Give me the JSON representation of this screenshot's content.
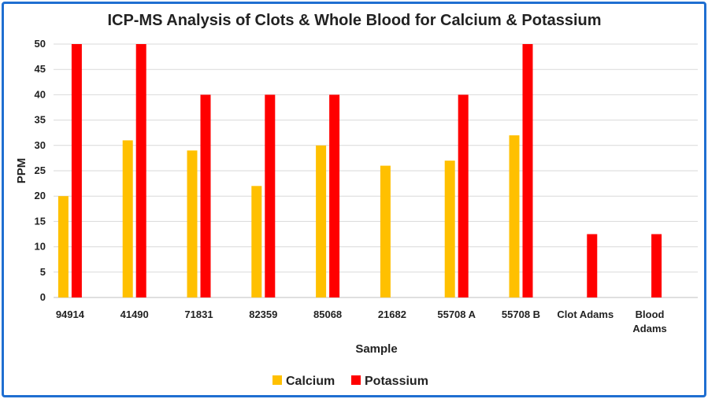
{
  "chart_data": {
    "type": "bar",
    "title": "ICP-MS Analysis of Clots & Whole Blood for Calcium & Potassium",
    "xlabel": "Sample",
    "ylabel": "PPM",
    "ylim": [
      0,
      50
    ],
    "yticks": [
      0,
      5,
      10,
      15,
      20,
      25,
      30,
      35,
      40,
      45,
      50
    ],
    "grid": true,
    "legend_position": "bottom",
    "categories": [
      [
        "94914"
      ],
      [
        "41490"
      ],
      [
        "71831"
      ],
      [
        "82359"
      ],
      [
        "85068"
      ],
      [
        "21682"
      ],
      [
        "55708 A"
      ],
      [
        "55708 B"
      ],
      [
        "Clot  Adams"
      ],
      [
        "Blood",
        "Adams"
      ]
    ],
    "series": [
      {
        "name": "Calcium",
        "color": "#FFC000",
        "values": [
          20,
          31,
          29,
          22,
          30,
          26,
          27,
          32,
          0,
          0
        ]
      },
      {
        "name": "Potassium",
        "color": "#FF0000",
        "values": [
          50,
          50,
          40,
          40,
          40,
          0,
          40,
          50,
          12.5,
          12.5
        ]
      }
    ]
  }
}
